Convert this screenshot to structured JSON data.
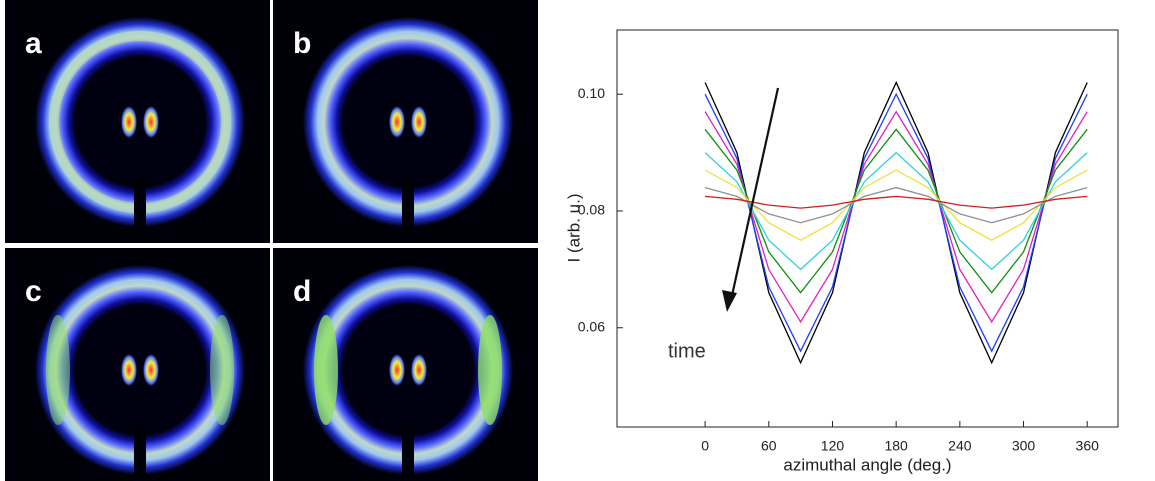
{
  "panels": {
    "labels": [
      "a",
      "b",
      "c",
      "d"
    ]
  },
  "chart_data": {
    "type": "line",
    "x_label": "azimuthal angle (deg.)",
    "y_label": "I (arb. u.)",
    "annotation": "time",
    "x": [
      0,
      30,
      60,
      90,
      120,
      150,
      180,
      210,
      240,
      270,
      300,
      330,
      360
    ],
    "series": [
      {
        "color": "#000000",
        "values": [
          0.102,
          0.09,
          0.066,
          0.054,
          0.066,
          0.09,
          0.102,
          0.09,
          0.066,
          0.054,
          0.066,
          0.09,
          0.102
        ]
      },
      {
        "color": "#1f3fff",
        "values": [
          0.1,
          0.089,
          0.067,
          0.056,
          0.067,
          0.089,
          0.1,
          0.089,
          0.067,
          0.056,
          0.067,
          0.089,
          0.1
        ]
      },
      {
        "color": "#e020c0",
        "values": [
          0.097,
          0.088,
          0.07,
          0.061,
          0.07,
          0.088,
          0.097,
          0.088,
          0.07,
          0.061,
          0.07,
          0.088,
          0.097
        ]
      },
      {
        "color": "#109010",
        "values": [
          0.094,
          0.087,
          0.073,
          0.066,
          0.073,
          0.087,
          0.094,
          0.087,
          0.073,
          0.066,
          0.073,
          0.087,
          0.094
        ]
      },
      {
        "color": "#30d0e0",
        "values": [
          0.09,
          0.085,
          0.075,
          0.07,
          0.075,
          0.085,
          0.09,
          0.085,
          0.075,
          0.07,
          0.075,
          0.085,
          0.09
        ]
      },
      {
        "color": "#f0e040",
        "values": [
          0.087,
          0.084,
          0.078,
          0.075,
          0.078,
          0.084,
          0.087,
          0.084,
          0.078,
          0.075,
          0.078,
          0.084,
          0.087
        ]
      },
      {
        "color": "#909090",
        "values": [
          0.084,
          0.0825,
          0.0795,
          0.078,
          0.0795,
          0.0825,
          0.084,
          0.0825,
          0.0795,
          0.078,
          0.0795,
          0.0825,
          0.084
        ]
      },
      {
        "color": "#d02020",
        "values": [
          0.0825,
          0.082,
          0.081,
          0.0805,
          0.081,
          0.082,
          0.0825,
          0.082,
          0.081,
          0.0805,
          0.081,
          0.082,
          0.0825
        ]
      }
    ],
    "xlim": [
      -83,
      389
    ],
    "xticks": [
      0,
      60,
      120,
      180,
      240,
      300,
      360
    ],
    "ylim": [
      0.043,
      0.111
    ],
    "yticks": [
      0.06,
      0.08,
      {
        "value": 0.1,
        "label": "0.10"
      }
    ],
    "grid": false
  }
}
